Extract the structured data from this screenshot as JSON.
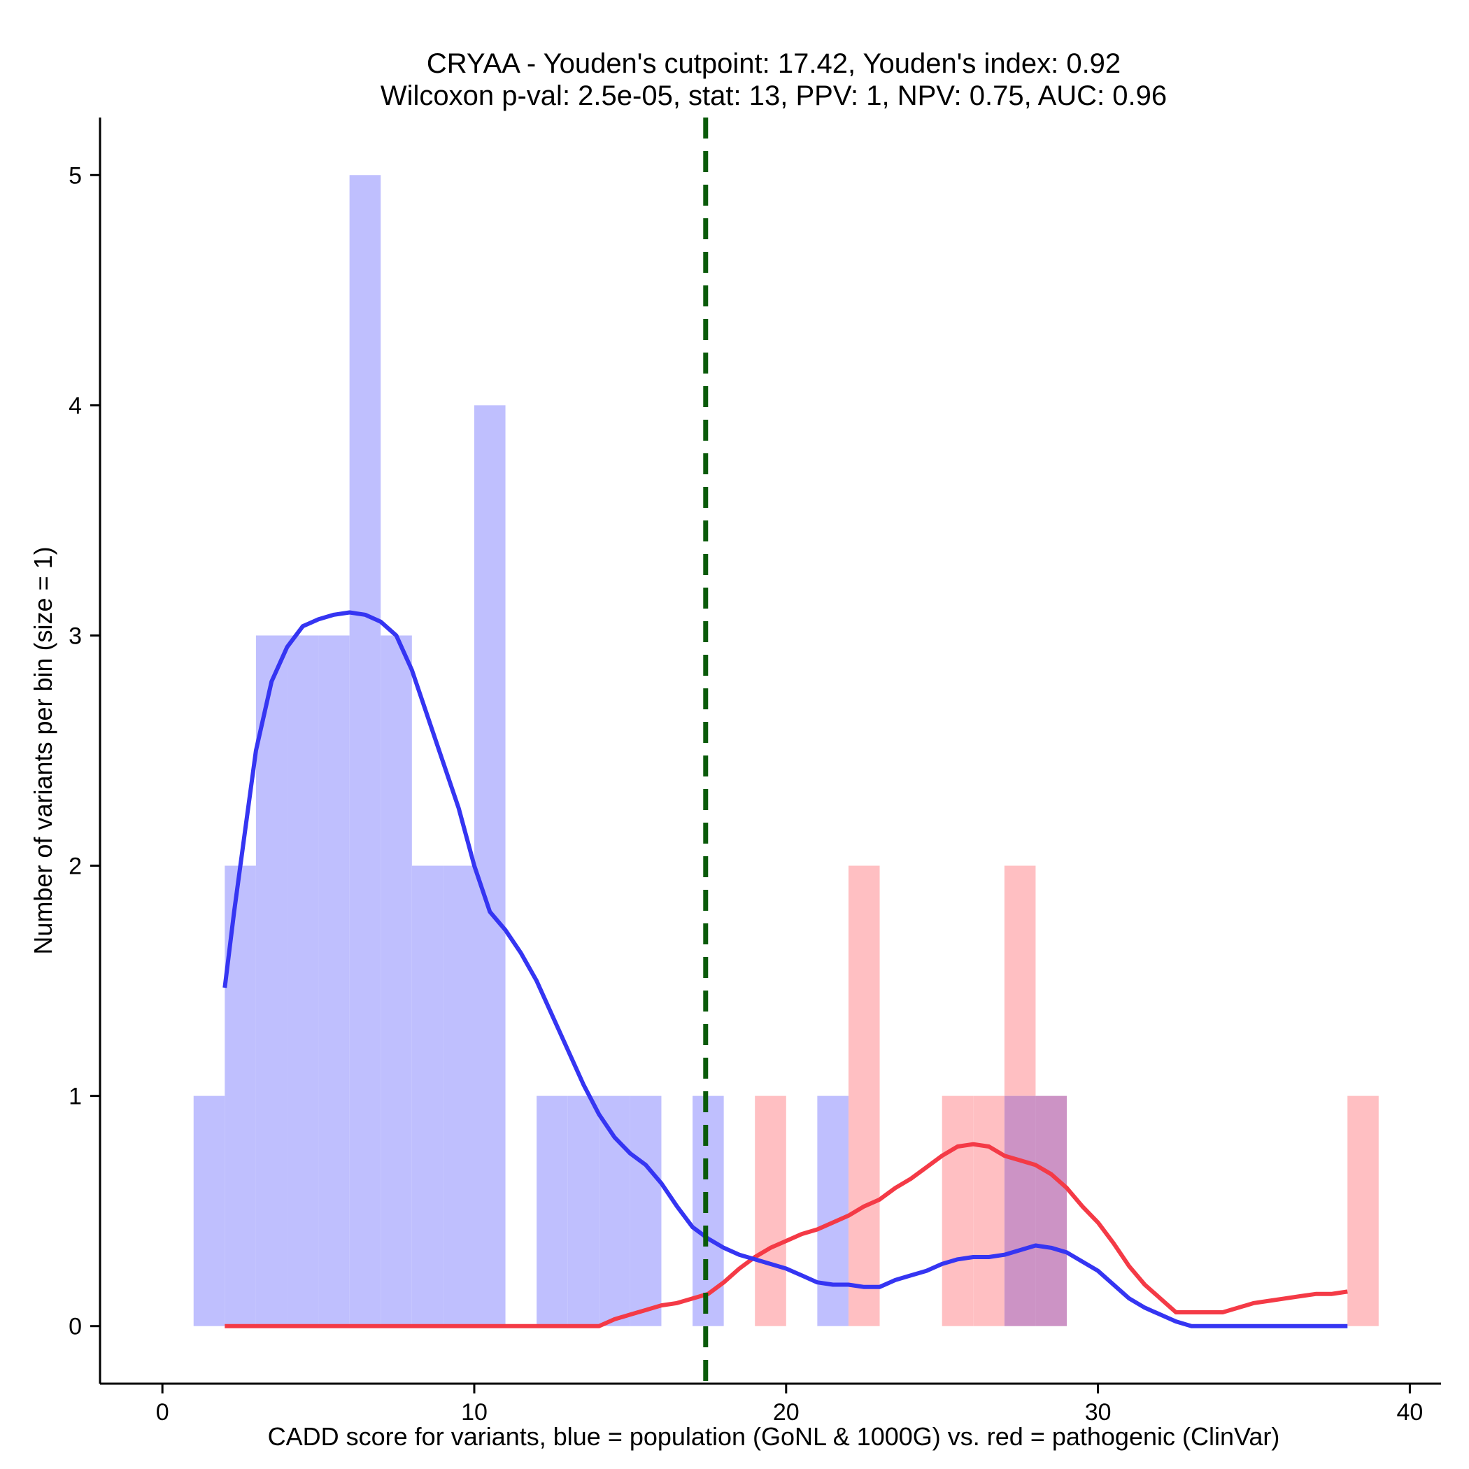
{
  "chart_data": {
    "type": "histogram",
    "title_line1": "CRYAA - Youden's cutpoint: 17.42, Youden's index: 0.92",
    "title_line2": "Wilcoxon p-val: 2.5e-05, stat: 13, PPV: 1, NPV: 0.75, AUC: 0.96",
    "xlabel": "CADD score for variants, blue = population (GoNL & 1000G) vs. red = pathogenic (ClinVar)",
    "ylabel": "Number of variants per bin (size = 1)",
    "xlim": [
      -2,
      41
    ],
    "ylim": [
      -0.25,
      5.25
    ],
    "x_ticks": [
      0,
      10,
      20,
      30,
      40
    ],
    "y_ticks": [
      0,
      1,
      2,
      3,
      4,
      5
    ],
    "cutpoint": 17.42,
    "colors": {
      "population_bar": "#bfbffe",
      "pathogenic_bar": "#ffbfc2",
      "overlap_bar": "#cc93c5",
      "population_line": "#3535f2",
      "pathogenic_line": "#f43a46",
      "cutpoint_line": "#0a5a0a"
    },
    "series": [
      {
        "name": "population",
        "bins": [
          {
            "x0": 1,
            "x1": 2,
            "count": 1
          },
          {
            "x0": 2,
            "x1": 3,
            "count": 2
          },
          {
            "x0": 3,
            "x1": 4,
            "count": 3
          },
          {
            "x0": 4,
            "x1": 5,
            "count": 3
          },
          {
            "x0": 5,
            "x1": 6,
            "count": 3
          },
          {
            "x0": 6,
            "x1": 7,
            "count": 5
          },
          {
            "x0": 7,
            "x1": 8,
            "count": 3
          },
          {
            "x0": 8,
            "x1": 9,
            "count": 2
          },
          {
            "x0": 9,
            "x1": 10,
            "count": 2
          },
          {
            "x0": 10,
            "x1": 11,
            "count": 4
          },
          {
            "x0": 12,
            "x1": 13,
            "count": 1
          },
          {
            "x0": 13,
            "x1": 14,
            "count": 1
          },
          {
            "x0": 14,
            "x1": 15,
            "count": 1
          },
          {
            "x0": 15,
            "x1": 16,
            "count": 1
          },
          {
            "x0": 17,
            "x1": 18,
            "count": 1
          },
          {
            "x0": 21,
            "x1": 22,
            "count": 1
          },
          {
            "x0": 27,
            "x1": 28,
            "count": 1
          },
          {
            "x0": 28,
            "x1": 29,
            "count": 1
          }
        ],
        "density_curve": [
          [
            2.0,
            1.47
          ],
          [
            2.3,
            1.8
          ],
          [
            2.7,
            2.2
          ],
          [
            3.0,
            2.5
          ],
          [
            3.5,
            2.8
          ],
          [
            4.0,
            2.95
          ],
          [
            4.5,
            3.04
          ],
          [
            5.0,
            3.07
          ],
          [
            5.5,
            3.09
          ],
          [
            6.0,
            3.1
          ],
          [
            6.5,
            3.09
          ],
          [
            7.0,
            3.06
          ],
          [
            7.5,
            3.0
          ],
          [
            8.0,
            2.85
          ],
          [
            8.5,
            2.65
          ],
          [
            9.0,
            2.45
          ],
          [
            9.5,
            2.25
          ],
          [
            10.0,
            2.0
          ],
          [
            10.5,
            1.8
          ],
          [
            11.0,
            1.72
          ],
          [
            11.5,
            1.62
          ],
          [
            12.0,
            1.5
          ],
          [
            12.5,
            1.35
          ],
          [
            13.0,
            1.2
          ],
          [
            13.5,
            1.05
          ],
          [
            14.0,
            0.92
          ],
          [
            14.5,
            0.82
          ],
          [
            15.0,
            0.75
          ],
          [
            15.5,
            0.7
          ],
          [
            16.0,
            0.62
          ],
          [
            16.5,
            0.52
          ],
          [
            17.0,
            0.43
          ],
          [
            17.5,
            0.38
          ],
          [
            18.0,
            0.34
          ],
          [
            18.5,
            0.31
          ],
          [
            19.0,
            0.29
          ],
          [
            19.5,
            0.27
          ],
          [
            20.0,
            0.25
          ],
          [
            20.5,
            0.22
          ],
          [
            21.0,
            0.19
          ],
          [
            21.5,
            0.18
          ],
          [
            22.0,
            0.18
          ],
          [
            22.5,
            0.17
          ],
          [
            23.0,
            0.17
          ],
          [
            23.5,
            0.2
          ],
          [
            24.0,
            0.22
          ],
          [
            24.5,
            0.24
          ],
          [
            25.0,
            0.27
          ],
          [
            25.5,
            0.29
          ],
          [
            26.0,
            0.3
          ],
          [
            26.5,
            0.3
          ],
          [
            27.0,
            0.31
          ],
          [
            27.5,
            0.33
          ],
          [
            28.0,
            0.35
          ],
          [
            28.5,
            0.34
          ],
          [
            29.0,
            0.32
          ],
          [
            29.5,
            0.28
          ],
          [
            30.0,
            0.24
          ],
          [
            30.5,
            0.18
          ],
          [
            31.0,
            0.12
          ],
          [
            31.5,
            0.08
          ],
          [
            32.0,
            0.05
          ],
          [
            32.5,
            0.02
          ],
          [
            33.0,
            0.0
          ],
          [
            34.0,
            0.0
          ],
          [
            36.0,
            0.0
          ],
          [
            38.0,
            0.0
          ]
        ]
      },
      {
        "name": "pathogenic",
        "bins": [
          {
            "x0": 19,
            "x1": 20,
            "count": 1
          },
          {
            "x0": 22,
            "x1": 23,
            "count": 2
          },
          {
            "x0": 25,
            "x1": 26,
            "count": 1
          },
          {
            "x0": 26,
            "x1": 27,
            "count": 1
          },
          {
            "x0": 27,
            "x1": 28,
            "count": 2
          },
          {
            "x0": 28,
            "x1": 29,
            "count": 1
          },
          {
            "x0": 38,
            "x1": 39,
            "count": 1
          }
        ],
        "density_curve": [
          [
            2.0,
            0.0
          ],
          [
            6.0,
            0.0
          ],
          [
            10.0,
            0.0
          ],
          [
            14.0,
            0.0
          ],
          [
            14.5,
            0.03
          ],
          [
            15.0,
            0.05
          ],
          [
            15.5,
            0.07
          ],
          [
            16.0,
            0.09
          ],
          [
            16.5,
            0.1
          ],
          [
            17.0,
            0.12
          ],
          [
            17.5,
            0.14
          ],
          [
            18.0,
            0.19
          ],
          [
            18.5,
            0.25
          ],
          [
            19.0,
            0.3
          ],
          [
            19.5,
            0.34
          ],
          [
            20.0,
            0.37
          ],
          [
            20.5,
            0.4
          ],
          [
            21.0,
            0.42
          ],
          [
            21.5,
            0.45
          ],
          [
            22.0,
            0.48
          ],
          [
            22.5,
            0.52
          ],
          [
            23.0,
            0.55
          ],
          [
            23.5,
            0.6
          ],
          [
            24.0,
            0.64
          ],
          [
            24.5,
            0.69
          ],
          [
            25.0,
            0.74
          ],
          [
            25.5,
            0.78
          ],
          [
            26.0,
            0.79
          ],
          [
            26.5,
            0.78
          ],
          [
            27.0,
            0.74
          ],
          [
            27.5,
            0.72
          ],
          [
            28.0,
            0.7
          ],
          [
            28.5,
            0.66
          ],
          [
            29.0,
            0.6
          ],
          [
            29.5,
            0.52
          ],
          [
            30.0,
            0.45
          ],
          [
            30.5,
            0.36
          ],
          [
            31.0,
            0.26
          ],
          [
            31.5,
            0.18
          ],
          [
            32.0,
            0.12
          ],
          [
            32.5,
            0.06
          ],
          [
            33.0,
            0.06
          ],
          [
            33.5,
            0.06
          ],
          [
            34.0,
            0.06
          ],
          [
            34.5,
            0.08
          ],
          [
            35.0,
            0.1
          ],
          [
            35.5,
            0.11
          ],
          [
            36.0,
            0.12
          ],
          [
            36.5,
            0.13
          ],
          [
            37.0,
            0.14
          ],
          [
            37.5,
            0.14
          ],
          [
            38.0,
            0.15
          ]
        ]
      }
    ]
  }
}
